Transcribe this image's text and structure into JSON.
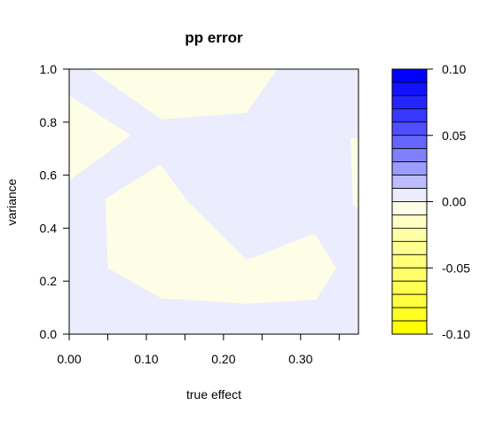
{
  "chart_data": {
    "type": "heatmap",
    "title": "pp error",
    "xlabel": "true effect",
    "ylabel": "variance",
    "xlim": [
      0.0,
      0.375
    ],
    "ylim": [
      0.0,
      1.0
    ],
    "x_ticks": [
      0.0,
      0.1,
      0.2,
      0.3
    ],
    "x_tick_labels": [
      "0.00",
      "0.10",
      "0.20",
      "0.30"
    ],
    "x_minor_ticks": [
      0.05,
      0.15,
      0.25,
      0.35
    ],
    "y_ticks": [
      0.0,
      0.2,
      0.4,
      0.6,
      0.8,
      1.0
    ],
    "y_tick_labels": [
      "0.0",
      "0.2",
      "0.4",
      "0.6",
      "0.8",
      "1.0"
    ],
    "background_level": "near-zero-positive",
    "background_color": "#ececff",
    "regions": [
      {
        "level": "near-zero-negative",
        "color": "#fefee6",
        "polygon": [
          [
            0.0,
            0.9
          ],
          [
            0.08,
            0.75
          ],
          [
            0.0,
            0.58
          ]
        ]
      },
      {
        "level": "near-zero-negative",
        "color": "#fefee6",
        "polygon": [
          [
            0.0,
            1.0
          ],
          [
            0.027,
            1.0
          ],
          [
            0.12,
            0.81
          ],
          [
            0.23,
            0.835
          ],
          [
            0.27,
            1.0
          ]
        ]
      },
      {
        "level": "near-zero-negative",
        "color": "#fefee6",
        "polygon": [
          [
            0.047,
            0.51
          ],
          [
            0.118,
            0.64
          ],
          [
            0.154,
            0.5
          ],
          [
            0.23,
            0.28
          ],
          [
            0.318,
            0.38
          ],
          [
            0.346,
            0.25
          ],
          [
            0.32,
            0.13
          ],
          [
            0.23,
            0.115
          ],
          [
            0.12,
            0.135
          ],
          [
            0.05,
            0.25
          ]
        ]
      },
      {
        "level": "near-zero-negative",
        "color": "#fefee6",
        "polygon": [
          [
            0.365,
            0.74
          ],
          [
            0.375,
            0.74
          ],
          [
            0.375,
            0.47
          ],
          [
            0.368,
            0.49
          ]
        ]
      }
    ],
    "colorbar": {
      "min": -0.1,
      "max": 0.1,
      "tick_values": [
        0.1,
        0.05,
        0.0,
        -0.05,
        -0.1
      ],
      "tick_labels": [
        "0.10",
        "0.05",
        "0.00",
        "-0.05",
        "-0.10"
      ],
      "levels": [
        {
          "from": 0.09,
          "to": 0.1,
          "color": "#0000ff"
        },
        {
          "from": 0.08,
          "to": 0.09,
          "color": "#1212ff"
        },
        {
          "from": 0.07,
          "to": 0.08,
          "color": "#2424ff"
        },
        {
          "from": 0.06,
          "to": 0.07,
          "color": "#3838ff"
        },
        {
          "from": 0.05,
          "to": 0.06,
          "color": "#4f4fff"
        },
        {
          "from": 0.04,
          "to": 0.05,
          "color": "#6666ff"
        },
        {
          "from": 0.03,
          "to": 0.04,
          "color": "#8080ff"
        },
        {
          "from": 0.02,
          "to": 0.03,
          "color": "#9c9cff"
        },
        {
          "from": 0.01,
          "to": 0.02,
          "color": "#bcbcff"
        },
        {
          "from": 0.0,
          "to": 0.01,
          "color": "#ececff"
        },
        {
          "from": -0.01,
          "to": 0.0,
          "color": "#fefee6"
        },
        {
          "from": -0.02,
          "to": -0.01,
          "color": "#ffffc4"
        },
        {
          "from": -0.03,
          "to": -0.02,
          "color": "#ffffa8"
        },
        {
          "from": -0.04,
          "to": -0.03,
          "color": "#ffff90"
        },
        {
          "from": -0.05,
          "to": -0.04,
          "color": "#ffff78"
        },
        {
          "from": -0.06,
          "to": -0.05,
          "color": "#ffff66"
        },
        {
          "from": -0.07,
          "to": -0.06,
          "color": "#ffff54"
        },
        {
          "from": -0.08,
          "to": -0.07,
          "color": "#ffff3f"
        },
        {
          "from": -0.09,
          "to": -0.08,
          "color": "#ffff22"
        },
        {
          "from": -0.1,
          "to": -0.09,
          "color": "#ffff00"
        }
      ]
    }
  }
}
